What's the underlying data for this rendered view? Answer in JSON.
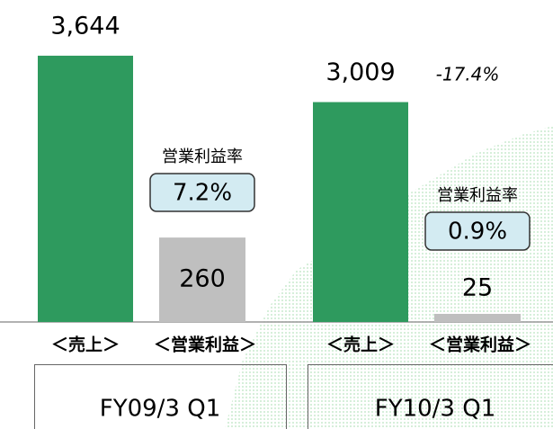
{
  "chart_data": {
    "type": "bar",
    "categories": [
      "FY09/3 Q1",
      "FY10/3 Q1"
    ],
    "series": [
      {
        "name": "＜売上＞",
        "color": "#2e9a5e",
        "values": [
          3644,
          3009
        ],
        "value_labels": [
          "3,644",
          "3,009"
        ]
      },
      {
        "name": "＜営業利益＞",
        "color": "#bfbfbf",
        "values": [
          260,
          25
        ],
        "axis": "y2"
      }
    ],
    "ylim": [
      0,
      4000
    ],
    "y2lim": [
      0,
      900
    ],
    "annotations": [
      {
        "label": "営業利益率",
        "value": "7.2%"
      },
      {
        "label": "営業利益率",
        "value": "0.9%"
      },
      {
        "text": "-17.4%"
      }
    ]
  }
}
